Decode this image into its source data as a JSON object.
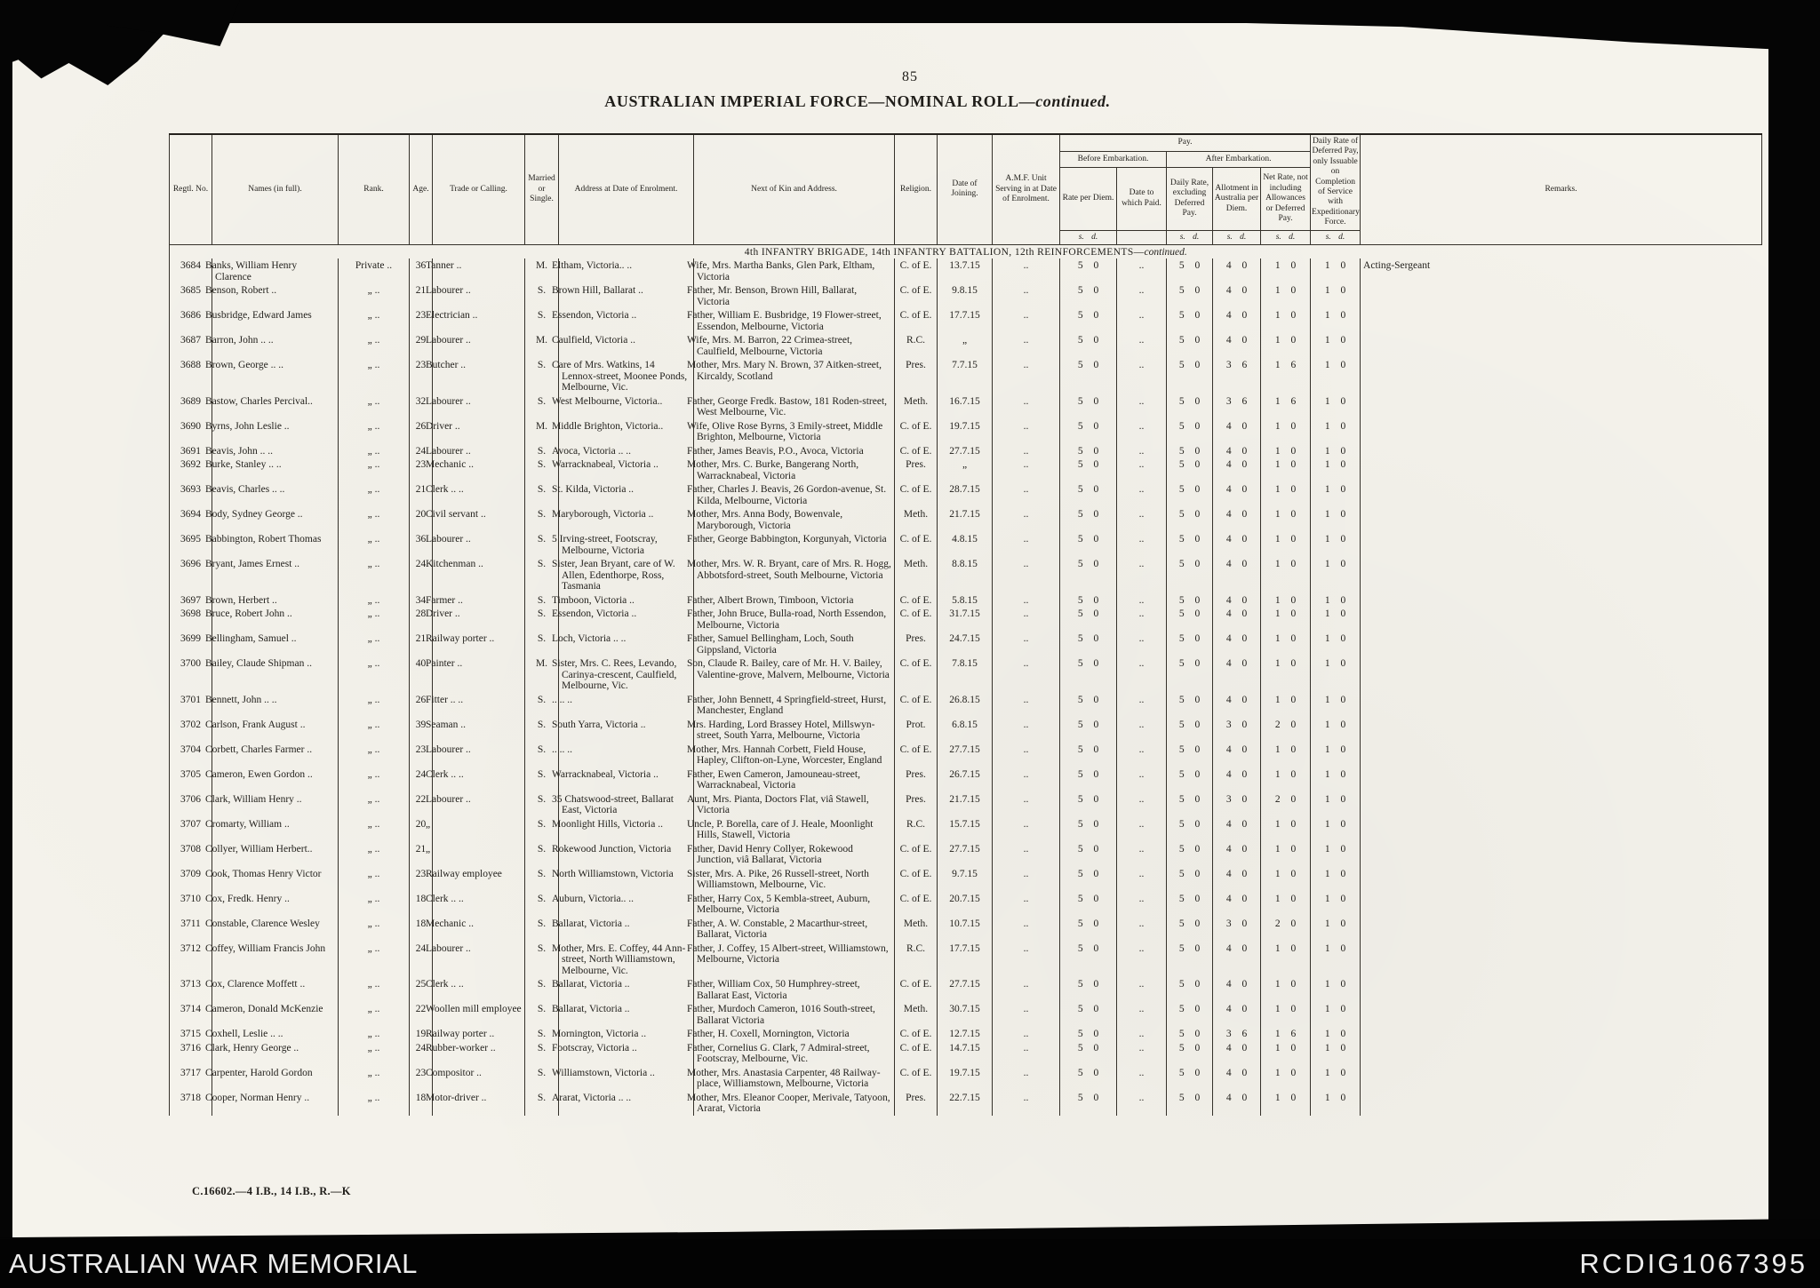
{
  "page": {
    "number": "85"
  },
  "title": {
    "main": "AUSTRALIAN IMPERIAL FORCE—NOMINAL ROLL—",
    "continued": "continued."
  },
  "section": {
    "main": "4th INFANTRY BRIGADE, 14th INFANTRY BATTALION, 12th REINFORCEMENTS—",
    "continued": "continued."
  },
  "print_code": "C.16602.—4 I.B., 14 I.B., R.—K",
  "footer": {
    "left": "AUSTRALIAN WAR MEMORIAL",
    "right": "RCDIG1067395"
  },
  "table": {
    "headers": {
      "regtl_no": "Regtl. No.",
      "names": "Names (in full).",
      "rank": "Rank.",
      "age": "Age.",
      "trade": "Trade or Calling.",
      "married": "Married or Single.",
      "address": "Address at Date of Enrolment.",
      "nok": "Next of Kin and Address.",
      "religion": "Religion.",
      "date_joining": "Date of Joining.",
      "amf": "A.M.F. Unit Serving in at Date of Enrolment.",
      "pay": "Pay.",
      "before": "Before Embarkation.",
      "after": "After Embarkation.",
      "rate": "Rate per Diem.",
      "date_paid": "Date to which Paid.",
      "daily": "Daily Rate, excluding Deferred Pay.",
      "allotment": "Allotment in Australia per Diem.",
      "net": "Net Rate, not including Allowances or Deferred Pay.",
      "deferred": "Daily Rate of Deferred Pay, only Issuable on Completion of Service with Expeditionary Force.",
      "remarks": "Remarks.",
      "sd": "s. d."
    },
    "rows": [
      {
        "no": "3684",
        "name": "Banks, William Henry Clarence",
        "rank": "Private ..",
        "age": "36",
        "trade": "Tanner ..",
        "ms": "M.",
        "address": "Eltham, Victoria.. ..",
        "nok": "Wife, Mrs. Martha Banks, Glen Park, Eltham, Victoria",
        "religion": "C. of E.",
        "date": "13.7.15",
        "amf": "..",
        "pay": [
          "5 0",
          "..",
          "5 0",
          "4 0",
          "1 0",
          "1 0"
        ],
        "remarks": "Acting-Sergeant"
      },
      {
        "no": "3685",
        "name": "Benson, Robert ..",
        "rank": "„ ..",
        "age": "21",
        "trade": "Labourer ..",
        "ms": "S.",
        "address": "Brown Hill, Ballarat ..",
        "nok": "Father, Mr. Benson, Brown Hill, Ballarat, Victoria",
        "religion": "C. of E.",
        "date": "9.8.15",
        "amf": "..",
        "pay": [
          "5 0",
          "..",
          "5 0",
          "4 0",
          "1 0",
          "1 0"
        ],
        "remarks": ""
      },
      {
        "no": "3686",
        "name": "Busbridge, Edward James",
        "rank": "„ ..",
        "age": "23",
        "trade": "Electrician ..",
        "ms": "S.",
        "address": "Essendon, Victoria ..",
        "nok": "Father, William E. Busbridge, 19 Flower-street, Essendon, Melbourne, Victoria",
        "religion": "C. of E.",
        "date": "17.7.15",
        "amf": "..",
        "pay": [
          "5 0",
          "..",
          "5 0",
          "4 0",
          "1 0",
          "1 0"
        ],
        "remarks": ""
      },
      {
        "no": "3687",
        "name": "Barron, John .. ..",
        "rank": "„ ..",
        "age": "29",
        "trade": "Labourer ..",
        "ms": "M.",
        "address": "Caulfield, Victoria ..",
        "nok": "Wife, Mrs. M. Barron, 22 Crimea-street, Caulfield, Melbourne, Victoria",
        "religion": "R.C.",
        "date": "„",
        "amf": "..",
        "pay": [
          "5 0",
          "..",
          "5 0",
          "4 0",
          "1 0",
          "1 0"
        ],
        "remarks": ""
      },
      {
        "no": "3688",
        "name": "Brown, George .. ..",
        "rank": "„ ..",
        "age": "23",
        "trade": "Butcher ..",
        "ms": "S.",
        "address": "Care of Mrs. Watkins, 14 Lennox-street, Moonee Ponds, Melbourne, Vic.",
        "nok": "Mother, Mrs. Mary N. Brown, 37 Aitken-street, Kircaldy, Scotland",
        "religion": "Pres.",
        "date": "7.7.15",
        "amf": "..",
        "pay": [
          "5 0",
          "..",
          "5 0",
          "3 6",
          "1 6",
          "1 0"
        ],
        "remarks": ""
      },
      {
        "no": "3689",
        "name": "Bastow, Charles Percival..",
        "rank": "„ ..",
        "age": "32",
        "trade": "Labourer ..",
        "ms": "S.",
        "address": "West Melbourne, Victoria..",
        "nok": "Father, George Fredk. Bastow, 181 Roden-street, West Melbourne, Vic.",
        "religion": "Meth.",
        "date": "16.7.15",
        "amf": "..",
        "pay": [
          "5 0",
          "..",
          "5 0",
          "3 6",
          "1 6",
          "1 0"
        ],
        "remarks": ""
      },
      {
        "no": "3690",
        "name": "Byrns, John Leslie ..",
        "rank": "„ ..",
        "age": "26",
        "trade": "Driver ..",
        "ms": "M.",
        "address": "Middle Brighton, Victoria..",
        "nok": "Wife, Olive Rose Byrns, 3 Emily-street, Middle Brighton, Melbourne, Victoria",
        "religion": "C. of E.",
        "date": "19.7.15",
        "amf": "..",
        "pay": [
          "5 0",
          "..",
          "5 0",
          "4 0",
          "1 0",
          "1 0"
        ],
        "remarks": ""
      },
      {
        "no": "3691",
        "name": "Beavis, John .. ..",
        "rank": "„ ..",
        "age": "24",
        "trade": "Labourer ..",
        "ms": "S.",
        "address": "Avoca, Victoria .. ..",
        "nok": "Father, James Beavis, P.O., Avoca, Victoria",
        "religion": "C. of E.",
        "date": "27.7.15",
        "amf": "..",
        "pay": [
          "5 0",
          "..",
          "5 0",
          "4 0",
          "1 0",
          "1 0"
        ],
        "remarks": ""
      },
      {
        "no": "3692",
        "name": "Burke, Stanley .. ..",
        "rank": "„ ..",
        "age": "23",
        "trade": "Mechanic ..",
        "ms": "S.",
        "address": "Warracknabeal, Victoria ..",
        "nok": "Mother, Mrs. C. Burke, Bangerang North, Warracknabeal, Victoria",
        "religion": "Pres.",
        "date": "„",
        "amf": "..",
        "pay": [
          "5 0",
          "..",
          "5 0",
          "4 0",
          "1 0",
          "1 0"
        ],
        "remarks": ""
      },
      {
        "no": "3693",
        "name": "Beavis, Charles .. ..",
        "rank": "„ ..",
        "age": "21",
        "trade": "Clerk .. ..",
        "ms": "S.",
        "address": "St. Kilda, Victoria ..",
        "nok": "Father, Charles J. Beavis, 26 Gordon-avenue, St. Kilda, Melbourne, Victoria",
        "religion": "C. of E.",
        "date": "28.7.15",
        "amf": "..",
        "pay": [
          "5 0",
          "..",
          "5 0",
          "4 0",
          "1 0",
          "1 0"
        ],
        "remarks": ""
      },
      {
        "no": "3694",
        "name": "Body, Sydney George ..",
        "rank": "„ ..",
        "age": "20",
        "trade": "Civil servant ..",
        "ms": "S.",
        "address": "Maryborough, Victoria ..",
        "nok": "Mother, Mrs. Anna Body, Bowenvale, Maryborough, Victoria",
        "religion": "Meth.",
        "date": "21.7.15",
        "amf": "..",
        "pay": [
          "5 0",
          "..",
          "5 0",
          "4 0",
          "1 0",
          "1 0"
        ],
        "remarks": ""
      },
      {
        "no": "3695",
        "name": "Babbington, Robert Thomas",
        "rank": "„ ..",
        "age": "36",
        "trade": "Labourer ..",
        "ms": "S.",
        "address": "5 Irving-street, Footscray, Melbourne, Victoria",
        "nok": "Father, George Babbington, Korgunyah, Victoria",
        "religion": "C. of E.",
        "date": "4.8.15",
        "amf": "..",
        "pay": [
          "5 0",
          "..",
          "5 0",
          "4 0",
          "1 0",
          "1 0"
        ],
        "remarks": ""
      },
      {
        "no": "3696",
        "name": "Bryant, James Ernest ..",
        "rank": "„ ..",
        "age": "24",
        "trade": "Kitchenman ..",
        "ms": "S.",
        "address": "Sister, Jean Bryant, care of W. Allen, Edenthorpe, Ross, Tasmania",
        "nok": "Mother, Mrs. W. R. Bryant, care of Mrs. R. Hogg, Abbotsford-street, South Melbourne, Victoria",
        "religion": "Meth.",
        "date": "8.8.15",
        "amf": "..",
        "pay": [
          "5 0",
          "..",
          "5 0",
          "4 0",
          "1 0",
          "1 0"
        ],
        "remarks": ""
      },
      {
        "no": "3697",
        "name": "Brown, Herbert ..",
        "rank": "„ ..",
        "age": "34",
        "trade": "Farmer ..",
        "ms": "S.",
        "address": "Timboon, Victoria ..",
        "nok": "Father, Albert Brown, Timboon, Victoria",
        "religion": "C. of E.",
        "date": "5.8.15",
        "amf": "..",
        "pay": [
          "5 0",
          "..",
          "5 0",
          "4 0",
          "1 0",
          "1 0"
        ],
        "remarks": ""
      },
      {
        "no": "3698",
        "name": "Bruce, Robert John ..",
        "rank": "„ ..",
        "age": "28",
        "trade": "Driver ..",
        "ms": "S.",
        "address": "Essendon, Victoria ..",
        "nok": "Father, John Bruce, Bulla-road, North Essendon, Melbourne, Victoria",
        "religion": "C. of E.",
        "date": "31.7.15",
        "amf": "..",
        "pay": [
          "5 0",
          "..",
          "5 0",
          "4 0",
          "1 0",
          "1 0"
        ],
        "remarks": ""
      },
      {
        "no": "3699",
        "name": "Bellingham, Samuel ..",
        "rank": "„ ..",
        "age": "21",
        "trade": "Railway porter ..",
        "ms": "S.",
        "address": "Loch, Victoria .. ..",
        "nok": "Father, Samuel Bellingham, Loch, South Gippsland, Victoria",
        "religion": "Pres.",
        "date": "24.7.15",
        "amf": "..",
        "pay": [
          "5 0",
          "..",
          "5 0",
          "4 0",
          "1 0",
          "1 0"
        ],
        "remarks": ""
      },
      {
        "no": "3700",
        "name": "Bailey, Claude Shipman ..",
        "rank": "„ ..",
        "age": "40",
        "trade": "Painter ..",
        "ms": "M.",
        "address": "Sister, Mrs. C. Rees, Levando, Carinya-crescent, Caulfield, Melbourne, Vic.",
        "nok": "Son, Claude R. Bailey, care of Mr. H. V. Bailey, Valentine-grove, Malvern, Melbourne, Victoria",
        "religion": "C. of E.",
        "date": "7.8.15",
        "amf": "..",
        "pay": [
          "5 0",
          "..",
          "5 0",
          "4 0",
          "1 0",
          "1 0"
        ],
        "remarks": ""
      },
      {
        "no": "3701",
        "name": "Bennett, John .. ..",
        "rank": "„ ..",
        "age": "26",
        "trade": "Fitter .. ..",
        "ms": "S.",
        "address": ".. .. ..",
        "nok": "Father, John Bennett, 4 Springfield-street, Hurst, Manchester, England",
        "religion": "C. of E.",
        "date": "26.8.15",
        "amf": "..",
        "pay": [
          "5 0",
          "..",
          "5 0",
          "4 0",
          "1 0",
          "1 0"
        ],
        "remarks": ""
      },
      {
        "no": "3702",
        "name": "Carlson, Frank August ..",
        "rank": "„ ..",
        "age": "39",
        "trade": "Seaman ..",
        "ms": "S.",
        "address": "South Yarra, Victoria ..",
        "nok": "Mrs. Harding, Lord Brassey Hotel, Millswyn-street, South Yarra, Melbourne, Victoria",
        "religion": "Prot.",
        "date": "6.8.15",
        "amf": "..",
        "pay": [
          "5 0",
          "..",
          "5 0",
          "3 0",
          "2 0",
          "1 0"
        ],
        "remarks": ""
      },
      {
        "no": "3704",
        "name": "Corbett, Charles Farmer ..",
        "rank": "„ ..",
        "age": "23",
        "trade": "Labourer ..",
        "ms": "S.",
        "address": ".. .. ..",
        "nok": "Mother, Mrs. Hannah Corbett, Field House, Hapley, Clifton-on-Lyne, Worcester, England",
        "religion": "C. of E.",
        "date": "27.7.15",
        "amf": "..",
        "pay": [
          "5 0",
          "..",
          "5 0",
          "4 0",
          "1 0",
          "1 0"
        ],
        "remarks": ""
      },
      {
        "no": "3705",
        "name": "Cameron, Ewen Gordon ..",
        "rank": "„ ..",
        "age": "24",
        "trade": "Clerk .. ..",
        "ms": "S.",
        "address": "Warracknabeal, Victoria ..",
        "nok": "Father, Ewen Cameron, Jamouneau-street, Warracknabeal, Victoria",
        "religion": "Pres.",
        "date": "26.7.15",
        "amf": "..",
        "pay": [
          "5 0",
          "..",
          "5 0",
          "4 0",
          "1 0",
          "1 0"
        ],
        "remarks": ""
      },
      {
        "no": "3706",
        "name": "Clark, William Henry ..",
        "rank": "„ ..",
        "age": "22",
        "trade": "Labourer ..",
        "ms": "S.",
        "address": "35 Chatswood-street, Ballarat East, Victoria",
        "nok": "Aunt, Mrs. Pianta, Doctors Flat, viâ Stawell, Victoria",
        "religion": "Pres.",
        "date": "21.7.15",
        "amf": "..",
        "pay": [
          "5 0",
          "..",
          "5 0",
          "3 0",
          "2 0",
          "1 0"
        ],
        "remarks": ""
      },
      {
        "no": "3707",
        "name": "Cromarty, William ..",
        "rank": "„ ..",
        "age": "20",
        "trade": "„",
        "ms": "S.",
        "address": "Moonlight Hills, Victoria ..",
        "nok": "Uncle, P. Borella, care of J. Heale, Moonlight Hills, Stawell, Victoria",
        "religion": "R.C.",
        "date": "15.7.15",
        "amf": "..",
        "pay": [
          "5 0",
          "..",
          "5 0",
          "4 0",
          "1 0",
          "1 0"
        ],
        "remarks": ""
      },
      {
        "no": "3708",
        "name": "Collyer, William Herbert..",
        "rank": "„ ..",
        "age": "21",
        "trade": "„",
        "ms": "S.",
        "address": "Rokewood Junction, Victoria",
        "nok": "Father, David Henry Collyer, Rokewood Junction, viâ Ballarat, Victoria",
        "religion": "C. of E.",
        "date": "27.7.15",
        "amf": "..",
        "pay": [
          "5 0",
          "..",
          "5 0",
          "4 0",
          "1 0",
          "1 0"
        ],
        "remarks": ""
      },
      {
        "no": "3709",
        "name": "Cook, Thomas Henry Victor",
        "rank": "„ ..",
        "age": "23",
        "trade": "Railway employee",
        "ms": "S.",
        "address": "North Williamstown, Victoria",
        "nok": "Sister, Mrs. A. Pike, 26 Russell-street, North Williamstown, Melbourne, Vic.",
        "religion": "C. of E.",
        "date": "9.7.15",
        "amf": "..",
        "pay": [
          "5 0",
          "..",
          "5 0",
          "4 0",
          "1 0",
          "1 0"
        ],
        "remarks": ""
      },
      {
        "no": "3710",
        "name": "Cox, Fredk. Henry ..",
        "rank": "„ ..",
        "age": "18",
        "trade": "Clerk .. ..",
        "ms": "S.",
        "address": "Auburn, Victoria.. ..",
        "nok": "Father, Harry Cox, 5 Kembla-street, Auburn, Melbourne, Victoria",
        "religion": "C. of E.",
        "date": "20.7.15",
        "amf": "..",
        "pay": [
          "5 0",
          "..",
          "5 0",
          "4 0",
          "1 0",
          "1 0"
        ],
        "remarks": ""
      },
      {
        "no": "3711",
        "name": "Constable, Clarence Wesley",
        "rank": "„ ..",
        "age": "18",
        "trade": "Mechanic ..",
        "ms": "S.",
        "address": "Ballarat, Victoria ..",
        "nok": "Father, A. W. Constable, 2 Macarthur-street, Ballarat, Victoria",
        "religion": "Meth.",
        "date": "10.7.15",
        "amf": "..",
        "pay": [
          "5 0",
          "..",
          "5 0",
          "3 0",
          "2 0",
          "1 0"
        ],
        "remarks": ""
      },
      {
        "no": "3712",
        "name": "Coffey, William Francis John",
        "rank": "„ ..",
        "age": "24",
        "trade": "Labourer ..",
        "ms": "S.",
        "address": "Mother, Mrs. E. Coffey, 44 Ann-street, North Williamstown, Melbourne, Vic.",
        "nok": "Father, J. Coffey, 15 Albert-street, Williamstown, Melbourne, Victoria",
        "religion": "R.C.",
        "date": "17.7.15",
        "amf": "..",
        "pay": [
          "5 0",
          "..",
          "5 0",
          "4 0",
          "1 0",
          "1 0"
        ],
        "remarks": ""
      },
      {
        "no": "3713",
        "name": "Cox, Clarence Moffett ..",
        "rank": "„ ..",
        "age": "25",
        "trade": "Clerk .. ..",
        "ms": "S.",
        "address": "Ballarat, Victoria ..",
        "nok": "Father, William Cox, 50 Humphrey-street, Ballarat East, Victoria",
        "religion": "C. of E.",
        "date": "27.7.15",
        "amf": "..",
        "pay": [
          "5 0",
          "..",
          "5 0",
          "4 0",
          "1 0",
          "1 0"
        ],
        "remarks": ""
      },
      {
        "no": "3714",
        "name": "Cameron, Donald McKenzie",
        "rank": "„ ..",
        "age": "22",
        "trade": "Woollen mill employee",
        "ms": "S.",
        "address": "Ballarat, Victoria ..",
        "nok": "Father, Murdoch Cameron, 1016 South-street, Ballarat Victoria",
        "religion": "Meth.",
        "date": "30.7.15",
        "amf": "..",
        "pay": [
          "5 0",
          "..",
          "5 0",
          "4 0",
          "1 0",
          "1 0"
        ],
        "remarks": ""
      },
      {
        "no": "3715",
        "name": "Coxhell, Leslie .. ..",
        "rank": "„ ..",
        "age": "19",
        "trade": "Railway porter ..",
        "ms": "S.",
        "address": "Mornington, Victoria ..",
        "nok": "Father, H. Coxell, Mornington, Victoria",
        "religion": "C. of E.",
        "date": "12.7.15",
        "amf": "..",
        "pay": [
          "5 0",
          "..",
          "5 0",
          "3 6",
          "1 6",
          "1 0"
        ],
        "remarks": ""
      },
      {
        "no": "3716",
        "name": "Clark, Henry George ..",
        "rank": "„ ..",
        "age": "24",
        "trade": "Rubber-worker ..",
        "ms": "S.",
        "address": "Footscray, Victoria ..",
        "nok": "Father, Cornelius G. Clark, 7 Admiral-street, Footscray, Melbourne, Vic.",
        "religion": "C. of E.",
        "date": "14.7.15",
        "amf": "..",
        "pay": [
          "5 0",
          "..",
          "5 0",
          "4 0",
          "1 0",
          "1 0"
        ],
        "remarks": ""
      },
      {
        "no": "3717",
        "name": "Carpenter, Harold Gordon",
        "rank": "„ ..",
        "age": "23",
        "trade": "Compositor ..",
        "ms": "S.",
        "address": "Williamstown, Victoria ..",
        "nok": "Mother, Mrs. Anastasia Carpenter, 48 Railway-place, Williamstown, Melbourne, Victoria",
        "religion": "C. of E.",
        "date": "19.7.15",
        "amf": "..",
        "pay": [
          "5 0",
          "..",
          "5 0",
          "4 0",
          "1 0",
          "1 0"
        ],
        "remarks": ""
      },
      {
        "no": "3718",
        "name": "Cooper, Norman Henry ..",
        "rank": "„ ..",
        "age": "18",
        "trade": "Motor-driver ..",
        "ms": "S.",
        "address": "Ararat, Victoria .. ..",
        "nok": "Mother, Mrs. Eleanor Cooper, Merivale, Tatyoon, Ararat, Victoria",
        "religion": "Pres.",
        "date": "22.7.15",
        "amf": "..",
        "pay": [
          "5 0",
          "..",
          "5 0",
          "4 0",
          "1 0",
          "1 0"
        ],
        "remarks": ""
      }
    ]
  }
}
